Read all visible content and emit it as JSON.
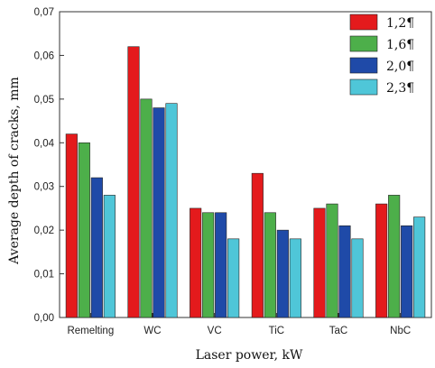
{
  "chart_data": {
    "type": "bar",
    "categories": [
      "Remelting",
      "WC",
      "VC",
      "TiC",
      "TaC",
      "NbC"
    ],
    "series": [
      {
        "name": "1,2¶",
        "values": [
          0.042,
          0.062,
          0.025,
          0.033,
          0.025,
          0.026
        ],
        "color": "#e41a1c"
      },
      {
        "name": "1,6¶",
        "values": [
          0.04,
          0.05,
          0.024,
          0.024,
          0.026,
          0.028
        ],
        "color": "#4daf4a"
      },
      {
        "name": "2,0¶",
        "values": [
          0.032,
          0.048,
          0.024,
          0.02,
          0.021,
          0.021
        ],
        "color": "#1f4aa8"
      },
      {
        "name": "2,3¶",
        "values": [
          0.028,
          0.049,
          0.018,
          0.018,
          0.018,
          0.023
        ],
        "color": "#4fc6d8"
      }
    ],
    "xlabel": "Laser power, kW",
    "ylabel": "Average depth of cracks, mm",
    "ylim": [
      0,
      0.07
    ],
    "yticks": [
      0,
      0.01,
      0.02,
      0.03,
      0.04,
      0.05,
      0.06,
      0.07
    ],
    "ytick_labels": [
      "0,00",
      "0,01",
      "0,02",
      "0,03",
      "0,04",
      "0,05",
      "0,06",
      "0,07"
    ],
    "legend_position": "top-right",
    "grid": false
  }
}
